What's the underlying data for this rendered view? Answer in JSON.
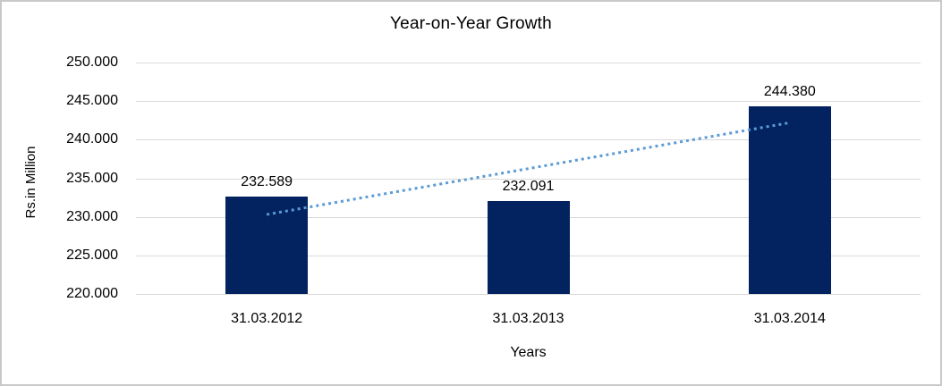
{
  "frame": {
    "background": "#ffffff",
    "border_color": "#c9c9c9"
  },
  "chart_data": {
    "type": "bar",
    "title": "Year-on-Year Growth",
    "categories": [
      "31.03.2012",
      "31.03.2013",
      "31.03.2014"
    ],
    "values": [
      232.589,
      232.091,
      244.38
    ],
    "value_labels": [
      "232.589",
      "232.091",
      "244.380"
    ],
    "xlabel": "Years",
    "ylabel": "Rs.in Million",
    "ylim": [
      220.0,
      250.0
    ],
    "ytick_values": [
      220,
      225,
      230,
      235,
      240,
      245,
      250
    ],
    "ytick_labels": [
      "220.000",
      "225.000",
      "230.000",
      "235.000",
      "240.000",
      "245.000",
      "250.000"
    ],
    "grid": true,
    "legend_position": "none",
    "bar_color": "#022260",
    "gridline_color": "#d9d9d9",
    "text_color": "#000000",
    "trendline": {
      "type": "linear",
      "style": "dotted",
      "color": "#5b9bd5",
      "start_value": 230.3,
      "end_value": 242.2
    }
  }
}
